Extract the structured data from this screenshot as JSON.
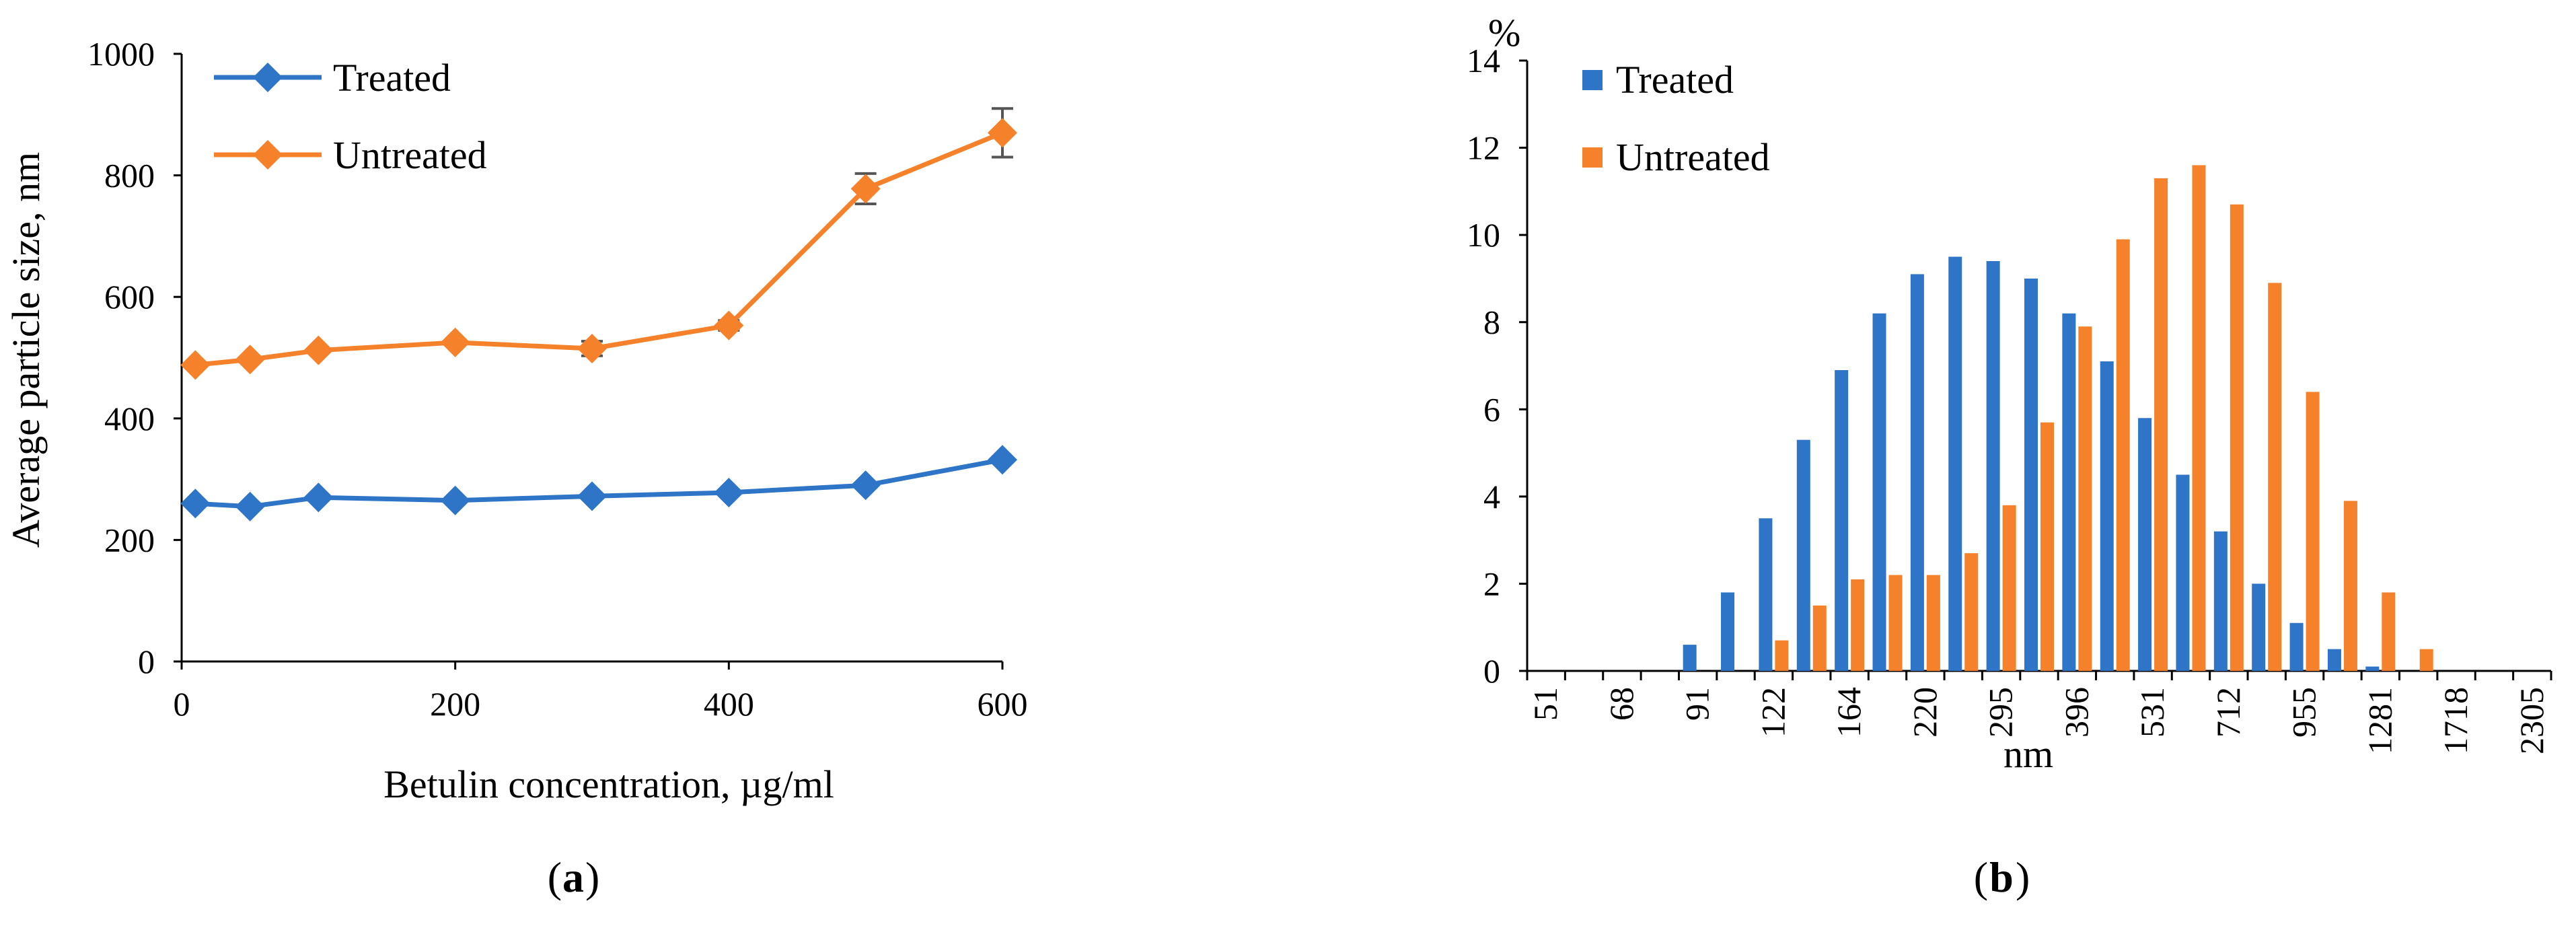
{
  "chart_data": [
    {
      "panel": "a",
      "type": "line",
      "xlabel": "Betulin concentration, µg/ml",
      "ylabel": "Average particle size, nm",
      "xlim": [
        0,
        600
      ],
      "ylim": [
        0,
        1000
      ],
      "xticks": [
        0,
        200,
        400,
        600
      ],
      "yticks": [
        0,
        200,
        400,
        600,
        800,
        1000
      ],
      "x": [
        10,
        50,
        100,
        200,
        300,
        400,
        500,
        600
      ],
      "legend_position": "top-left",
      "series": [
        {
          "name": "Treated",
          "color": "#2E75C8",
          "values": [
            260,
            255,
            270,
            265,
            272,
            278,
            290,
            332
          ],
          "errors": [
            0,
            0,
            0,
            0,
            0,
            0,
            0,
            0
          ]
        },
        {
          "name": "Untreated",
          "color": "#F5822A",
          "values": [
            488,
            497,
            512,
            525,
            515,
            553,
            778,
            870
          ],
          "errors": [
            0,
            0,
            0,
            0,
            12,
            8,
            25,
            40
          ]
        }
      ]
    },
    {
      "panel": "b",
      "type": "bar",
      "xlabel": "nm",
      "ylabel": "%",
      "ylim": [
        0,
        14
      ],
      "yticks": [
        0,
        2,
        4,
        6,
        8,
        10,
        12,
        14
      ],
      "legend_position": "top-left",
      "categories": [
        "51",
        "",
        "68",
        "",
        "91",
        "",
        "122",
        "",
        "164",
        "",
        "220",
        "",
        "295",
        "",
        "396",
        "",
        "531",
        "",
        "712",
        "",
        "955",
        "",
        "1281",
        "",
        "1718",
        "",
        "2305"
      ],
      "series": [
        {
          "name": "Treated",
          "color": "#2E75C8",
          "values": [
            0,
            0,
            0,
            0,
            0.6,
            1.8,
            3.5,
            5.3,
            6.9,
            8.2,
            9.1,
            9.5,
            9.4,
            9.0,
            8.2,
            7.1,
            5.8,
            4.5,
            3.2,
            2.0,
            1.1,
            0.5,
            0.1,
            0,
            0,
            0,
            0
          ]
        },
        {
          "name": "Untreated",
          "color": "#F5822A",
          "values": [
            0,
            0,
            0,
            0,
            0,
            0,
            0.7,
            1.5,
            2.1,
            2.2,
            2.2,
            2.7,
            3.8,
            5.7,
            7.9,
            9.9,
            11.3,
            11.6,
            10.7,
            8.9,
            6.4,
            3.9,
            1.8,
            0.5,
            0,
            0,
            0
          ]
        }
      ]
    }
  ],
  "panel_labels": {
    "a": "a",
    "b": "b"
  }
}
